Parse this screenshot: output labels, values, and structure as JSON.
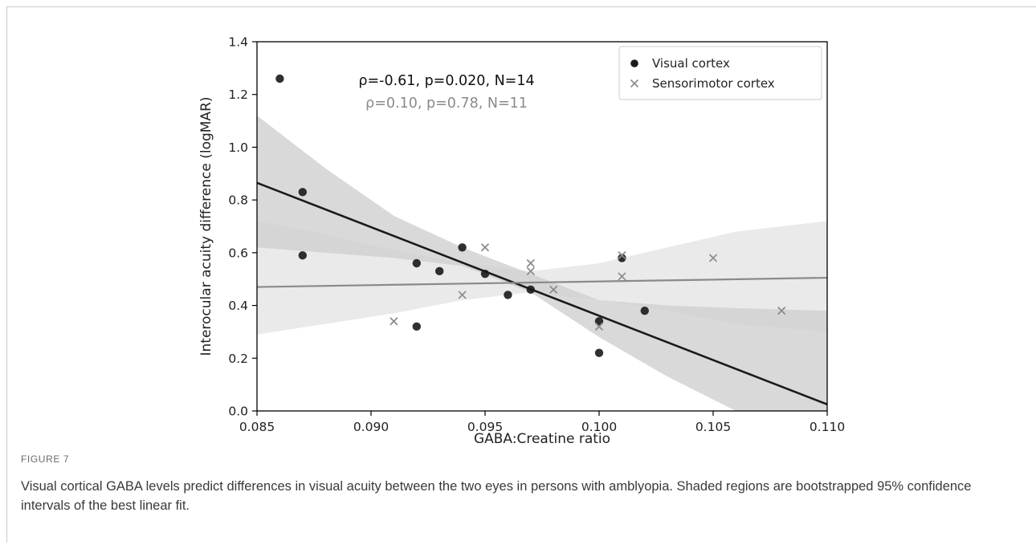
{
  "figure": {
    "label": "FIGURE 7",
    "caption": "Visual cortical GABA levels predict differences in visual acuity between the two eyes in persons with amblyopia. Shaded regions are bootstrapped 95% confidence intervals of the best linear fit."
  },
  "chart_data": {
    "type": "scatter",
    "xlabel": "GABA:Creatine ratio",
    "ylabel": "Interocular acuity difference (logMAR)",
    "xlim": [
      0.085,
      0.11
    ],
    "ylim": [
      0.0,
      1.4
    ],
    "xticks": [
      "0.085",
      "0.090",
      "0.095",
      "0.100",
      "0.105",
      "0.110"
    ],
    "yticks": [
      "0.0",
      "0.2",
      "0.4",
      "0.6",
      "0.8",
      "1.0",
      "1.2",
      "1.4"
    ],
    "legend_position": "top-right",
    "annotations": {
      "visual": "ρ=-0.61, p=0.020, N=14",
      "sensorimotor": "ρ=0.10, p=0.78, N=11"
    },
    "colors": {
      "visual": "#1a1a1a",
      "sensorimotor": "#8a8a8a",
      "visual_ci": "#cfcfcf",
      "sensorimotor_ci": "#e6e6e6"
    },
    "series": [
      {
        "name": "Visual cortex",
        "marker": "circle",
        "points": [
          [
            0.086,
            1.26
          ],
          [
            0.087,
            0.83
          ],
          [
            0.087,
            0.59
          ],
          [
            0.092,
            0.56
          ],
          [
            0.092,
            0.32
          ],
          [
            0.093,
            0.53
          ],
          [
            0.094,
            0.62
          ],
          [
            0.095,
            0.52
          ],
          [
            0.096,
            0.44
          ],
          [
            0.097,
            0.46
          ],
          [
            0.1,
            0.34
          ],
          [
            0.1,
            0.22
          ],
          [
            0.101,
            0.58
          ],
          [
            0.102,
            0.38
          ]
        ],
        "fit": [
          [
            0.085,
            0.865
          ],
          [
            0.11,
            0.025
          ]
        ],
        "ci_upper": [
          [
            0.085,
            1.12
          ],
          [
            0.088,
            0.92
          ],
          [
            0.091,
            0.74
          ],
          [
            0.094,
            0.62
          ],
          [
            0.097,
            0.52
          ],
          [
            0.1,
            0.42
          ],
          [
            0.103,
            0.4
          ],
          [
            0.106,
            0.39
          ],
          [
            0.11,
            0.38
          ]
        ],
        "ci_lower": [
          [
            0.085,
            0.62
          ],
          [
            0.088,
            0.6
          ],
          [
            0.091,
            0.58
          ],
          [
            0.094,
            0.55
          ],
          [
            0.097,
            0.45
          ],
          [
            0.1,
            0.28
          ],
          [
            0.103,
            0.13
          ],
          [
            0.106,
            0.0
          ],
          [
            0.11,
            0.0
          ]
        ]
      },
      {
        "name": "Sensorimotor cortex",
        "marker": "x",
        "points": [
          [
            0.091,
            0.34
          ],
          [
            0.094,
            0.44
          ],
          [
            0.095,
            0.62
          ],
          [
            0.097,
            0.56
          ],
          [
            0.097,
            0.53
          ],
          [
            0.098,
            0.46
          ],
          [
            0.1,
            0.32
          ],
          [
            0.101,
            0.59
          ],
          [
            0.101,
            0.51
          ],
          [
            0.105,
            0.58
          ],
          [
            0.108,
            0.38
          ]
        ],
        "fit": [
          [
            0.085,
            0.47
          ],
          [
            0.11,
            0.505
          ]
        ],
        "ci_upper": [
          [
            0.085,
            0.72
          ],
          [
            0.088,
            0.67
          ],
          [
            0.091,
            0.61
          ],
          [
            0.094,
            0.56
          ],
          [
            0.097,
            0.53
          ],
          [
            0.1,
            0.56
          ],
          [
            0.103,
            0.62
          ],
          [
            0.106,
            0.68
          ],
          [
            0.11,
            0.72
          ]
        ],
        "ci_lower": [
          [
            0.085,
            0.29
          ],
          [
            0.088,
            0.33
          ],
          [
            0.091,
            0.37
          ],
          [
            0.094,
            0.42
          ],
          [
            0.097,
            0.45
          ],
          [
            0.1,
            0.42
          ],
          [
            0.103,
            0.38
          ],
          [
            0.106,
            0.33
          ],
          [
            0.11,
            0.3
          ]
        ]
      }
    ]
  }
}
